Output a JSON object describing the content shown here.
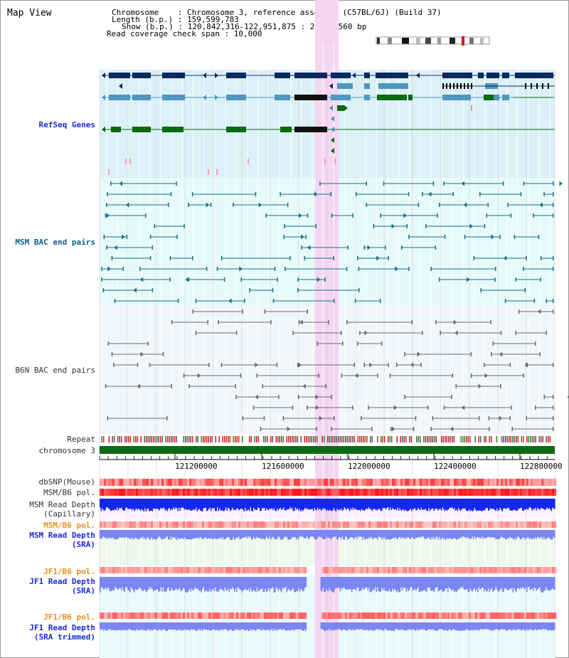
{
  "title": "Map View",
  "header": {
    "chromosome": "Chromosome    : Chromosome 3, reference assembly (C57BL/6J) (Build 37)",
    "length": "Length (b.p.) : 159,599,783",
    "show": "Show (b.p.) : 120,842,316-122,951,875 : 2,109,560 bp",
    "span": "Read coverage check span : 10,000"
  },
  "tracks": {
    "refseq": "RefSeq Genes",
    "msm_bac": "MSM BAC end pairs",
    "b6n_bac": "B6N BAC end pairs",
    "repeat": "Repeat",
    "chromosome": "chromosome 3",
    "dbsnp": "dbSNP(Mouse)",
    "msm_b6_pol": "MSM/B6 pol.",
    "msm_depth_cap": "MSM Read Depth\n(Capillary)",
    "msm_b6_pol2": "MSM/B6 pol.",
    "msm_depth_sra": "MSM Read Depth\n(SRA)",
    "jf1_b6_pol": "JF1/B6 pol.",
    "jf1_depth_sra": "JF1 Read Depth\n(SRA)",
    "jf1_b6_pol2": "JF1/B6 pol.",
    "jf1_depth_trim": "JF1 Read Depth\n(SRA trimmed)"
  },
  "axis": {
    "ticks": [
      "121200000",
      "121600000",
      "122000000",
      "122400000",
      "122800000"
    ]
  },
  "colors": {
    "refseq_bg": "#dcf0f8",
    "msm_bg": "#e6fafa",
    "b6n_bg": "#f3f6f8",
    "highlight": "#f4d6f2",
    "navy": "#0a2a5e",
    "steel": "#4e97bd",
    "green": "#0a6a10",
    "teal_line": "#1a6f86",
    "gray_line": "#6a6a6a",
    "red_pol": "#ff2a2a",
    "blue_depth": "#1428f0",
    "light_blue_depth": "#7a86f2"
  }
}
